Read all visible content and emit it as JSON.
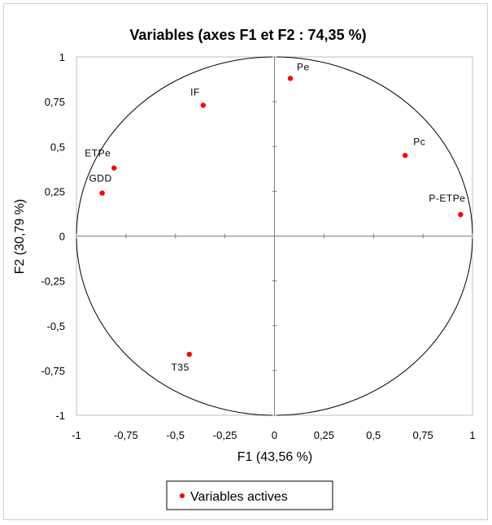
{
  "chart_data": {
    "type": "scatter",
    "title": "Variables (axes F1 et F2 : 74,35 %)",
    "xlabel": "F1 (43,56 %)",
    "ylabel": "F2 (30,79 %)",
    "xlim": [
      -1,
      1
    ],
    "ylim": [
      -1,
      1
    ],
    "xticks": [
      "-1",
      "-0,75",
      "-0,5",
      "-0,25",
      "0",
      "0,25",
      "0,5",
      "0,75",
      "1"
    ],
    "yticks": [
      "-1",
      "-0,75",
      "-0,5",
      "-0,25",
      "0",
      "0,25",
      "0,5",
      "0,75",
      "1"
    ],
    "xtick_values": [
      -1,
      -0.75,
      -0.5,
      -0.25,
      0,
      0.25,
      0.5,
      0.75,
      1
    ],
    "ytick_values": [
      -1,
      -0.75,
      -0.5,
      -0.25,
      0,
      0.25,
      0.5,
      0.75,
      1
    ],
    "correlation_circle": true,
    "grid": false,
    "legend": {
      "position": "bottom",
      "label": "Variables actives"
    },
    "series": [
      {
        "name": "Variables actives",
        "color": "#ff0000",
        "points": [
          {
            "label": "Pe",
            "x": 0.08,
            "y": 0.88
          },
          {
            "label": "IF",
            "x": -0.36,
            "y": 0.73
          },
          {
            "label": "Pc",
            "x": 0.66,
            "y": 0.45
          },
          {
            "label": "ETPe",
            "x": -0.81,
            "y": 0.38
          },
          {
            "label": "GDD",
            "x": -0.87,
            "y": 0.24
          },
          {
            "label": "P-ETPe",
            "x": 0.94,
            "y": 0.12
          },
          {
            "label": "T35",
            "x": -0.43,
            "y": -0.66
          }
        ]
      }
    ]
  }
}
